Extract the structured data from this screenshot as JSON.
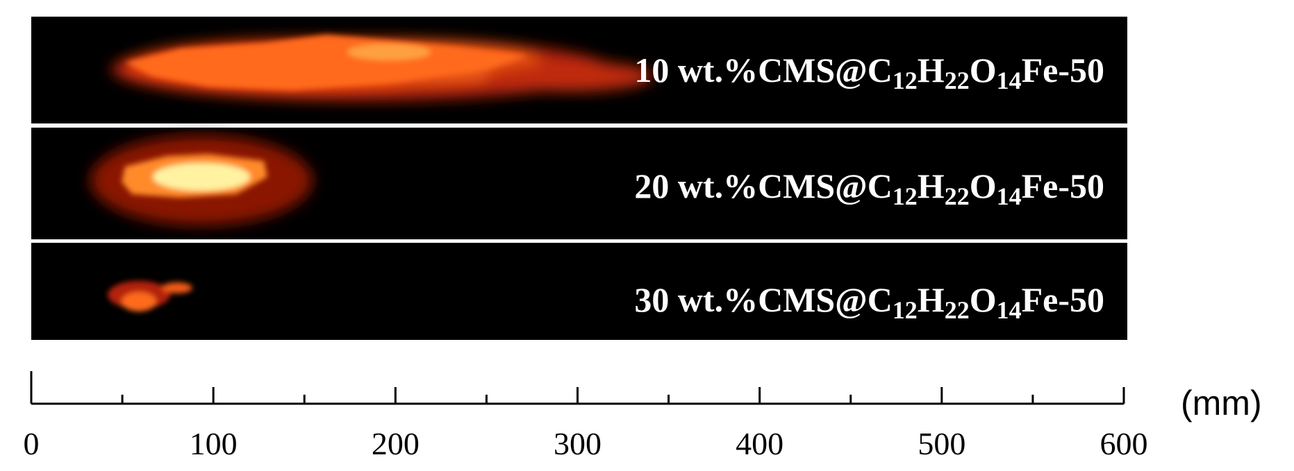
{
  "panels": [
    {
      "label": [
        "10 wt.%CMS@C",
        "12",
        "H",
        "22",
        "O",
        "14",
        "Fe-50"
      ]
    },
    {
      "label": [
        "20 wt.%CMS@C",
        "12",
        "H",
        "22",
        "O",
        "14",
        "Fe-50"
      ]
    },
    {
      "label": [
        "30 wt.%CMS@C",
        "12",
        "H",
        "22",
        "O",
        "14",
        "Fe-50"
      ]
    }
  ],
  "scale": {
    "range": [
      0,
      600
    ],
    "ticks": [
      0,
      100,
      200,
      300,
      400,
      500,
      600
    ],
    "minor_ticks": [
      50,
      150,
      250,
      350,
      450,
      550
    ],
    "unit": "(mm)"
  }
}
